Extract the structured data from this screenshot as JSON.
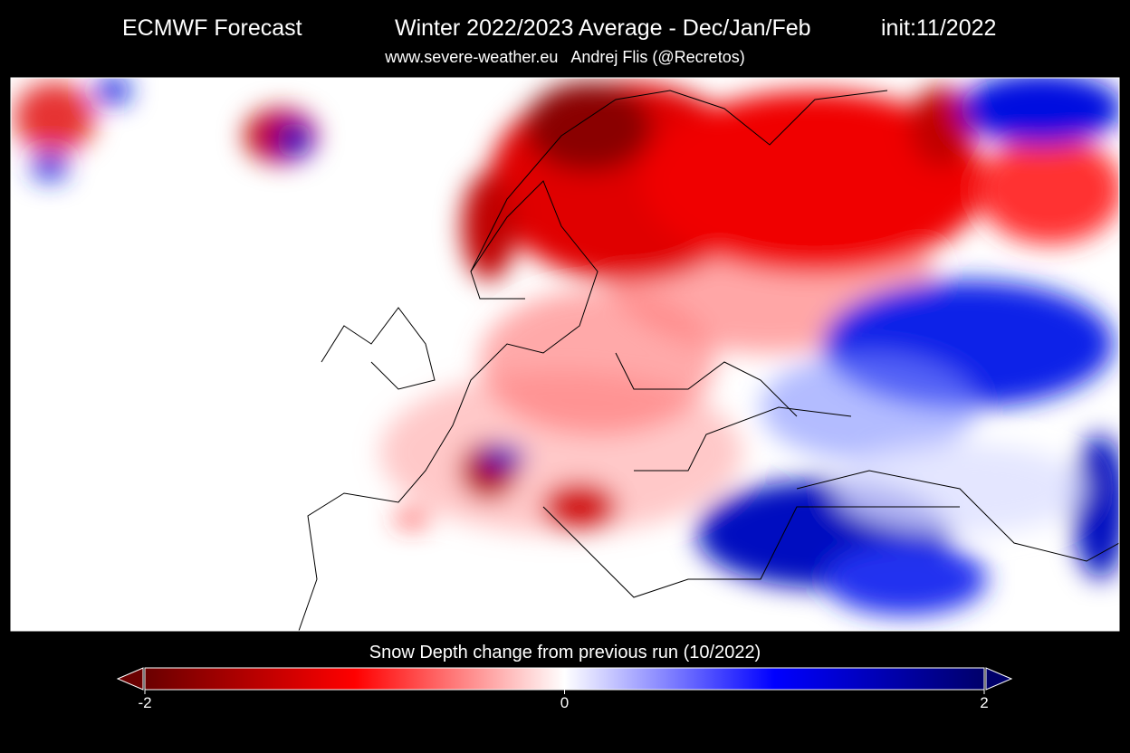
{
  "header": {
    "title_left": "ECMWF Forecast",
    "title_center": "Winter 2022/2023 Average - Dec/Jan/Feb",
    "title_right": "init:11/2022",
    "subtitle": "www.severe-weather.eu   Andrej Flis (@Recretos)"
  },
  "colorbar": {
    "label": "Snow Depth change from previous run (10/2022)",
    "range": [
      -2,
      2
    ],
    "ticks": [
      -2,
      0,
      2
    ]
  }
}
